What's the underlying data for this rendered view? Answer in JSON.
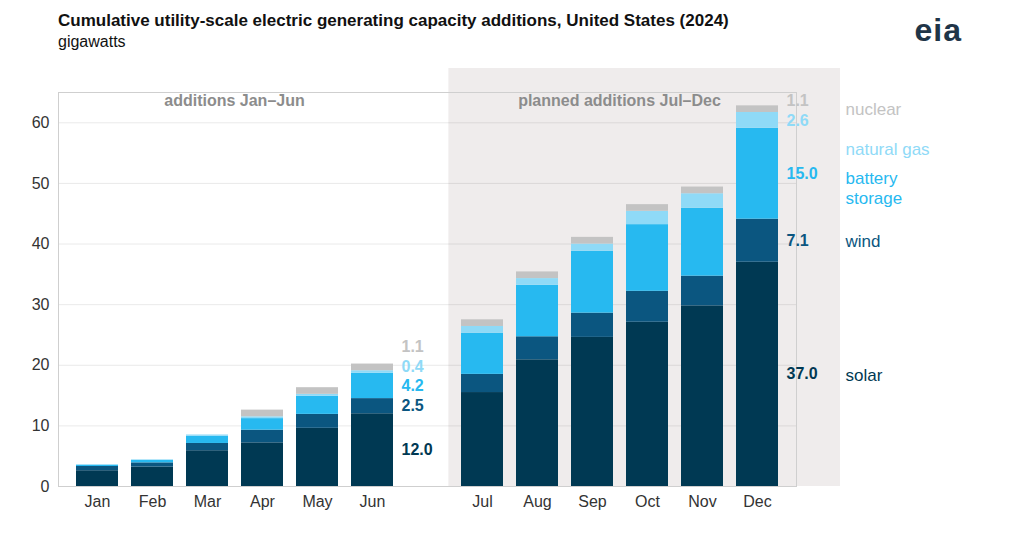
{
  "chart_data": {
    "type": "bar",
    "stacked": true,
    "title": "Cumulative utility-scale electric generating capacity additions, United States (2024)",
    "subtitle": "gigawatts",
    "source": "eia",
    "categories": [
      "Jan",
      "Feb",
      "Mar",
      "Apr",
      "May",
      "Jun",
      "Jul",
      "Aug",
      "Sep",
      "Oct",
      "Nov",
      "Dec"
    ],
    "periods": [
      {
        "label": "additions Jan–Jun",
        "start": "Jan",
        "end": "Jun"
      },
      {
        "label": "planned additions Jul–Dec",
        "start": "Jul",
        "end": "Dec"
      }
    ],
    "series": [
      {
        "name": "solar",
        "color": "#003953",
        "values": [
          2.6,
          3.2,
          5.9,
          7.2,
          9.6,
          12.0,
          15.5,
          20.9,
          24.6,
          27.1,
          29.8,
          37.0
        ],
        "value_labels": [
          null,
          null,
          null,
          null,
          null,
          "12.0",
          null,
          null,
          null,
          null,
          null,
          "37.0"
        ]
      },
      {
        "name": "wind",
        "color": "#0b5680",
        "values": [
          0.7,
          0.7,
          1.2,
          2.1,
          2.3,
          2.5,
          3.0,
          3.8,
          4.0,
          5.1,
          4.9,
          7.1
        ],
        "value_labels": [
          null,
          null,
          null,
          null,
          null,
          "2.5",
          null,
          null,
          null,
          null,
          null,
          "7.1"
        ]
      },
      {
        "name": "battery storage",
        "color": "#27b9f0",
        "values": [
          0.2,
          0.4,
          1.2,
          1.9,
          3.0,
          4.2,
          6.8,
          8.5,
          10.2,
          11.0,
          11.2,
          15.0
        ],
        "value_labels": [
          null,
          null,
          null,
          null,
          null,
          "4.2",
          null,
          null,
          null,
          null,
          null,
          "15.0"
        ]
      },
      {
        "name": "natural gas",
        "color": "#8fdaf7",
        "values": [
          0.1,
          0.1,
          0.2,
          0.3,
          0.3,
          0.4,
          1.1,
          1.1,
          1.2,
          2.2,
          2.4,
          2.6
        ],
        "value_labels": [
          null,
          null,
          null,
          null,
          null,
          "0.4",
          null,
          null,
          null,
          null,
          null,
          "2.6"
        ]
      },
      {
        "name": "nuclear",
        "color": "#c3c3c3",
        "values": [
          0,
          0,
          0,
          1.1,
          1.1,
          1.1,
          1.1,
          1.1,
          1.1,
          1.1,
          1.1,
          1.1
        ],
        "value_labels": [
          null,
          null,
          null,
          null,
          null,
          "1.1",
          null,
          null,
          null,
          null,
          null,
          "1.1"
        ]
      }
    ],
    "ylim": [
      0,
      65
    ],
    "yticks": [
      0,
      10,
      20,
      30,
      40,
      50,
      60
    ],
    "grid": true,
    "data_labels": true,
    "legend": "right"
  }
}
